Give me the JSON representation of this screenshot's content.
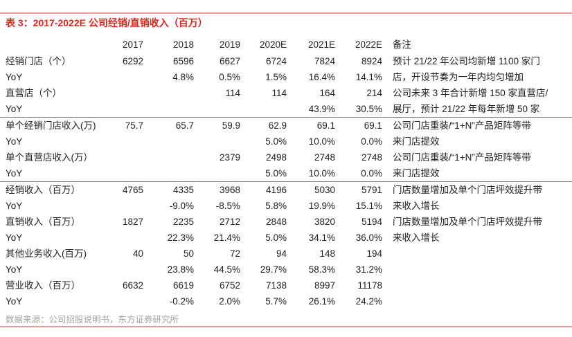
{
  "title": "表 3：2017-2022E 公司经销/直销收入（百万）",
  "source": "数据来源：公司招股说明书，东方证券研究所",
  "colors": {
    "title_red": "#e0241d",
    "rule_pink": "#e9999b",
    "divider_gray": "#7d7d7d",
    "source_gray": "#a3a3a3",
    "text": "#212121"
  },
  "columns": [
    "",
    "2017",
    "2018",
    "2019",
    "2020E",
    "2021E",
    "2022E",
    "备注"
  ],
  "rows": [
    {
      "label": "经销门店（个）",
      "values": [
        "6292",
        "6596",
        "6627",
        "6724",
        "7824",
        "8924"
      ],
      "note": "预计 21/22 年公司均新增 1100 家门",
      "group_start": false
    },
    {
      "label": "YoY",
      "values": [
        "",
        "4.8%",
        "0.5%",
        "1.5%",
        "16.4%",
        "14.1%"
      ],
      "note": "店，开设节奏为一年内均匀增加",
      "group_start": false
    },
    {
      "label": "直营店（个）",
      "values": [
        "",
        "",
        "114",
        "114",
        "164",
        "214"
      ],
      "note": "公司未来 3 年合计新增 150 家直营店/",
      "group_start": false
    },
    {
      "label": "YoY",
      "values": [
        "",
        "",
        "",
        "",
        "43.9%",
        "30.5%"
      ],
      "note": "展厅，预计 21/22 年每年新增 50 家",
      "group_start": false
    },
    {
      "label": "单个经销门店收入(万)",
      "values": [
        "75.7",
        "65.7",
        "59.9",
        "62.9",
        "69.1",
        "69.1"
      ],
      "note": "公司门店重装/“1+N”产品矩阵等带",
      "group_start": true
    },
    {
      "label": "YoY",
      "values": [
        "",
        "",
        "",
        "5.0%",
        "10.0%",
        "0.0%"
      ],
      "note": "来门店提效",
      "group_start": false
    },
    {
      "label": "单个直营店收入(万）",
      "values": [
        "",
        "",
        "2379",
        "2498",
        "2748",
        "2748"
      ],
      "note": "公司门店重装/“1+N”产品矩阵等带",
      "group_start": false
    },
    {
      "label": "YoY",
      "values": [
        "",
        "",
        "",
        "5.0%",
        "10.0%",
        "0.0%"
      ],
      "note": "来门店提效",
      "group_start": false
    },
    {
      "label": "经销收入（百万）",
      "values": [
        "4765",
        "4335",
        "3968",
        "4196",
        "5030",
        "5791"
      ],
      "note": "门店数量增加及单个门店坪效提升带",
      "group_start": true
    },
    {
      "label": "YoY",
      "values": [
        "",
        "-9.0%",
        "-8.5%",
        "5.8%",
        "19.9%",
        "15.1%"
      ],
      "note": "来收入增长",
      "group_start": false
    },
    {
      "label": "直销收入（百万）",
      "values": [
        "1827",
        "2235",
        "2712",
        "2848",
        "3820",
        "5194"
      ],
      "note": "门店数量增加及单个门店坪效提升带",
      "group_start": false
    },
    {
      "label": "YoY",
      "values": [
        "",
        "22.3%",
        "21.4%",
        "5.0%",
        "34.1%",
        "36.0%"
      ],
      "note": "来收入增长",
      "group_start": false
    },
    {
      "label": "其他业务收入(百万)",
      "values": [
        "40",
        "50",
        "72",
        "94",
        "148",
        "194"
      ],
      "note": "",
      "group_start": false
    },
    {
      "label": "YoY",
      "values": [
        "",
        "23.8%",
        "44.5%",
        "29.7%",
        "58.3%",
        "31.2%"
      ],
      "note": "",
      "group_start": false
    },
    {
      "label": "营业收入（百万）",
      "values": [
        "6632",
        "6619",
        "6752",
        "7138",
        "8997",
        "11178"
      ],
      "note": "",
      "group_start": false
    },
    {
      "label": "YoY",
      "values": [
        "",
        "-0.2%",
        "2.0%",
        "5.7%",
        "26.1%",
        "24.2%"
      ],
      "note": "",
      "group_start": false
    }
  ]
}
